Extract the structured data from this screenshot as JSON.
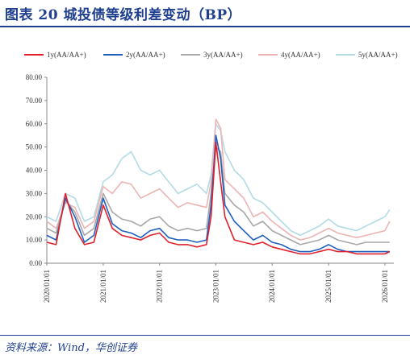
{
  "title": "图表 20    城投债等级利差变动（BP）",
  "source": "资料来源：Wind，华创证券",
  "chart_data": {
    "type": "line",
    "ylim": [
      0,
      80
    ],
    "yticks": [
      "0.00",
      "10.00",
      "20.00",
      "30.00",
      "40.00",
      "50.00",
      "60.00",
      "70.00",
      "80.00"
    ],
    "xticks": [
      "2020/01/01",
      "2021/01/01",
      "2022/01/01",
      "2023/01/01",
      "2024/01/01",
      "2025/01/01",
      "2026/01/01"
    ],
    "x_range": [
      "2020/01/01",
      "2026/02/28"
    ],
    "legend_position": "top",
    "grid": false,
    "x": [
      "2020/01",
      "2020/03",
      "2020/05",
      "2020/07",
      "2020/09",
      "2020/11",
      "2021/01",
      "2021/03",
      "2021/05",
      "2021/07",
      "2021/09",
      "2021/11",
      "2022/01",
      "2022/03",
      "2022/05",
      "2022/07",
      "2022/09",
      "2022/11",
      "2022/12",
      "2023/01",
      "2023/02",
      "2023/03",
      "2023/05",
      "2023/07",
      "2023/09",
      "2023/11",
      "2024/01",
      "2024/03",
      "2024/05",
      "2024/07",
      "2024/09",
      "2024/11",
      "2025/01",
      "2025/03",
      "2025/05",
      "2025/07",
      "2025/09",
      "2025/11",
      "2026/01",
      "2026/02"
    ],
    "series": [
      {
        "name": "1y(AA/AA+)",
        "color": "#e0202a",
        "values": [
          9,
          8,
          30,
          15,
          8,
          9,
          25,
          15,
          12,
          11,
          10,
          12,
          13,
          9,
          8,
          8,
          7,
          8,
          20,
          52,
          35,
          20,
          10,
          9,
          8,
          9,
          7,
          6,
          5,
          4,
          4,
          5,
          6,
          5,
          5,
          4,
          4,
          4,
          4,
          5
        ]
      },
      {
        "name": "2y(AA/AA+)",
        "color": "#1f5fbf",
        "values": [
          12,
          10,
          28,
          20,
          9,
          12,
          28,
          17,
          14,
          13,
          11,
          14,
          15,
          11,
          10,
          10,
          9,
          10,
          25,
          55,
          45,
          25,
          18,
          14,
          10,
          12,
          9,
          8,
          6,
          5,
          5,
          6,
          8,
          6,
          5,
          5,
          5,
          5,
          5,
          5
        ]
      },
      {
        "name": "3y(AA/AA+)",
        "color": "#a8a8a8",
        "values": [
          15,
          13,
          27,
          22,
          12,
          15,
          30,
          22,
          19,
          18,
          16,
          19,
          20,
          16,
          14,
          15,
          14,
          15,
          30,
          50,
          48,
          30,
          25,
          22,
          16,
          18,
          14,
          12,
          10,
          8,
          9,
          10,
          12,
          10,
          9,
          8,
          9,
          9,
          9,
          9
        ]
      },
      {
        "name": "4y(AA/AA+)",
        "color": "#eeb3b3",
        "values": [
          18,
          15,
          26,
          24,
          15,
          18,
          33,
          30,
          35,
          34,
          28,
          30,
          32,
          28,
          24,
          26,
          25,
          24,
          35,
          62,
          58,
          36,
          32,
          28,
          20,
          22,
          18,
          15,
          12,
          10,
          11,
          13,
          15,
          13,
          12,
          11,
          12,
          13,
          14,
          18
        ]
      },
      {
        "name": "5y(AA/AA+)",
        "color": "#b3dbe6",
        "values": [
          20,
          18,
          30,
          28,
          18,
          20,
          35,
          38,
          45,
          48,
          40,
          38,
          40,
          35,
          30,
          32,
          34,
          30,
          38,
          60,
          57,
          48,
          40,
          36,
          28,
          26,
          22,
          18,
          14,
          12,
          14,
          16,
          19,
          16,
          15,
          14,
          16,
          18,
          20,
          23
        ]
      }
    ]
  }
}
